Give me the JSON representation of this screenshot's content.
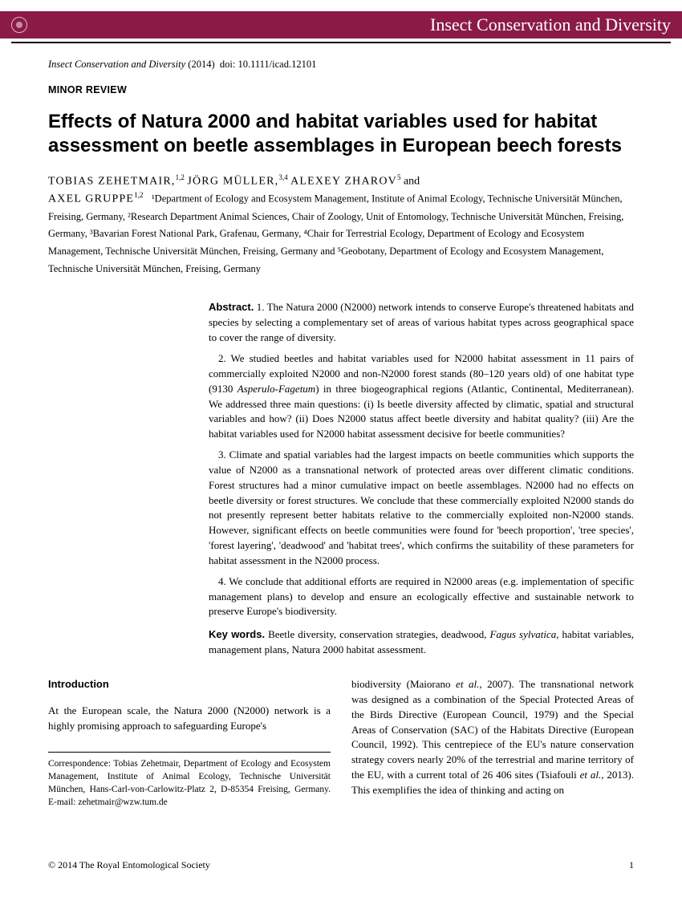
{
  "banner": {
    "journal_name": "Insect Conservation and Diversity"
  },
  "header": {
    "journal_line_italic": "Insect Conservation and Diversity",
    "journal_year": "(2014)",
    "doi_label": "doi:",
    "doi": "10.1111/icad.12101",
    "article_type": "MINOR REVIEW",
    "title": "Effects of Natura 2000 and habitat variables used for habitat assessment on beetle assemblages in European beech forests"
  },
  "authors": {
    "a1": "TOBIAS ZEHETMAIR,",
    "a1_sup": "1,2",
    "a2": "JÖRG MÜLLER,",
    "a2_sup": "3,4",
    "a3": "ALEXEY ZHAROV",
    "a3_sup": "5",
    "and": "and",
    "a4": "AXEL GRUPPE",
    "a4_sup": "1,2"
  },
  "affiliations": "¹Department of Ecology and Ecosystem Management, Institute of Animal Ecology, Technische Universität München, Freising, Germany, ²Research Department Animal Sciences, Chair of Zoology, Unit of Entomology, Technische Universität München, Freising, Germany, ³Bavarian Forest National Park, Grafenau, Germany, ⁴Chair for Terrestrial Ecology, Department of Ecology and Ecosystem Management, Technische Universität München, Freising, Germany and ⁵Geobotany, Department of Ecology and Ecosystem Management, Technische Universität München, Freising, Germany",
  "abstract": {
    "label": "Abstract.",
    "p1": "1. The Natura 2000 (N2000) network intends to conserve Europe's threatened habitats and species by selecting a complementary set of areas of various habitat types across geographical space to cover the range of diversity.",
    "p2a": "2. We studied beetles and habitat variables used for N2000 habitat assessment in 11 pairs of commercially exploited N2000 and non-N2000 forest stands (80–120 years old) of one habitat type (9130 ",
    "p2_italic": "Asperulo-Fagetum",
    "p2b": ") in three biogeographical regions (Atlantic, Continental, Mediterranean). We addressed three main questions: (i) Is beetle diversity affected by climatic, spatial and structural variables and how? (ii) Does N2000 status affect beetle diversity and habitat quality? (iii) Are the habitat variables used for N2000 habitat assessment decisive for beetle communities?",
    "p3": "3. Climate and spatial variables had the largest impacts on beetle communities which supports the value of N2000 as a transnational network of protected areas over different climatic conditions. Forest structures had a minor cumulative impact on beetle assemblages. N2000 had no effects on beetle diversity or forest structures. We conclude that these commercially exploited N2000 stands do not presently represent better habitats relative to the commercially exploited non-N2000 stands. However, significant effects on beetle communities were found for 'beech proportion', 'tree species', 'forest layering', 'deadwood' and 'habitat trees', which confirms the suitability of these parameters for habitat assessment in the N2000 process.",
    "p4": "4. We conclude that additional efforts are required in N2000 areas (e.g. implementation of specific management plans) to develop and ensure an ecologically effective and sustainable network to preserve Europe's biodiversity.",
    "kw_label": "Key words.",
    "kw_text_a": "Beetle diversity, conservation strategies, deadwood, ",
    "kw_italic": "Fagus sylvatica",
    "kw_text_b": ", habitat variables, management plans, Natura 2000 habitat assessment."
  },
  "body": {
    "intro_head": "Introduction",
    "col1_p1": "At the European scale, the Natura 2000 (N2000) network is a highly promising approach to safeguarding Europe's",
    "correspondence": "Correspondence: Tobias Zehetmair, Department of Ecology and Ecosystem Management, Institute of Animal Ecology, Technische Universität München, Hans-Carl-von-Carlowitz-Platz 2, D-85354 Freising, Germany. E-mail: zehetmair@wzw.tum.de",
    "col2_p1a": "biodiversity (Maiorano ",
    "col2_p1_i1": "et al.",
    "col2_p1b": ", 2007). The transnational network was designed as a combination of the Special Protected Areas of the Birds Directive (European Council, 1979) and the Special Areas of Conservation (SAC) of the Habitats Directive (European Council, 1992). This centrepiece of the EU's nature conservation strategy covers nearly 20% of the terrestrial and marine territory of the EU, with a current total of 26 406 sites (Tsiafouli ",
    "col2_p1_i2": "et al.",
    "col2_p1c": ", 2013). This exemplifies the idea of thinking and acting on"
  },
  "footer": {
    "copyright": "© 2014 The Royal Entomological Society",
    "page": "1"
  }
}
